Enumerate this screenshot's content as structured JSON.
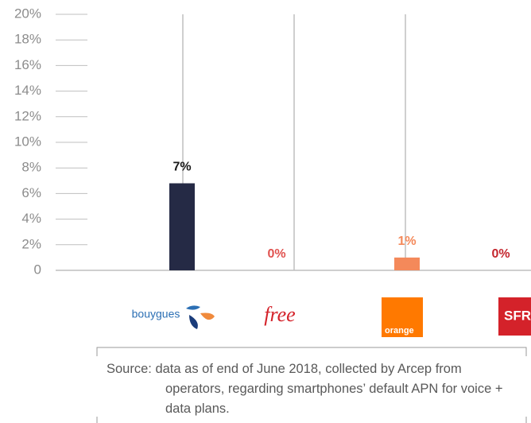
{
  "chart_data": {
    "type": "bar",
    "categories": [
      "bouygues",
      "free",
      "orange",
      "SFR"
    ],
    "values": [
      6.8,
      0,
      1,
      0
    ],
    "value_labels": [
      "7%",
      "0%",
      "1%",
      "0%"
    ],
    "colors": [
      "#252a45",
      "#e8474a",
      "#f4895a",
      "#d4222a"
    ],
    "ylim": [
      0,
      20
    ],
    "yticks": [
      0,
      {
        "value": 2,
        "label": "2%"
      },
      {
        "value": 4,
        "label": "4%"
      },
      {
        "value": 6,
        "label": "6%"
      },
      {
        "value": 8,
        "label": "8%"
      },
      {
        "value": 10,
        "label": "10%"
      },
      {
        "value": 12,
        "label": "12%"
      },
      {
        "value": 14,
        "label": "14%"
      },
      {
        "value": 16,
        "label": "16%"
      },
      {
        "value": 18,
        "label": "18%"
      },
      {
        "value": 20,
        "label": "20%"
      }
    ],
    "source": "Source: data as of end of June 2018, collected by Arcep from operators, regarding smartphones’ default APN for voice + data plans."
  }
}
